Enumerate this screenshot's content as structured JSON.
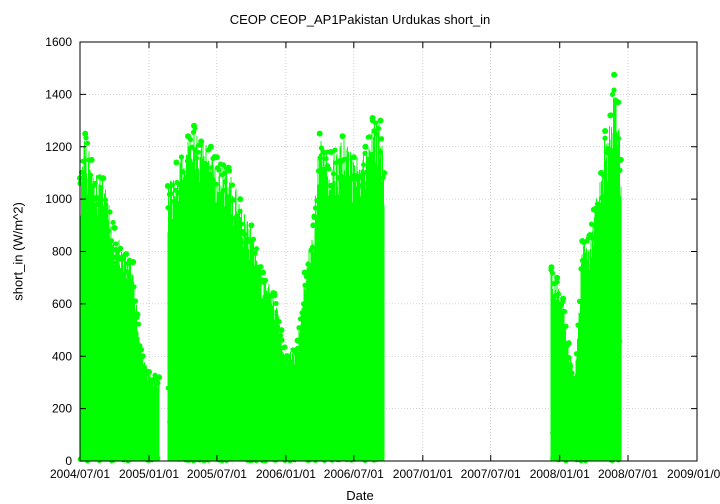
{
  "chart_data": {
    "type": "scatter",
    "title": "CEOP CEOP_AP1Pakistan Urdukas  short_in",
    "xlabel": "Date",
    "ylabel": "short_in (W/m^2)",
    "ylim": [
      0,
      1600
    ],
    "yticks": [
      0,
      200,
      400,
      600,
      800,
      1000,
      1200,
      1400,
      1600
    ],
    "xlim": [
      "2004-07-01",
      "2009-01-01"
    ],
    "xticks": [
      "2004/07/01",
      "2005/01/01",
      "2005/07/01",
      "2006/01/01",
      "2006/07/01",
      "2007/01/01",
      "2007/07/01",
      "2008/01/01",
      "2008/07/01",
      "2009/01/01"
    ],
    "grid": true,
    "series": [
      {
        "color": "#00ff00",
        "segments": [
          {
            "start": "2004-07-01",
            "end": "2005-01-28",
            "envelope": [
              [
                "2004-07-01",
                1080
              ],
              [
                "2004-07-15",
                1250
              ],
              [
                "2004-08-01",
                1150
              ],
              [
                "2004-09-01",
                1080
              ],
              [
                "2004-10-01",
                890
              ],
              [
                "2004-11-01",
                790
              ],
              [
                "2004-11-20",
                760
              ],
              [
                "2004-12-01",
                560
              ],
              [
                "2004-12-15",
                400
              ],
              [
                "2005-01-01",
                340
              ],
              [
                "2005-01-28",
                320
              ]
            ]
          },
          {
            "start": "2005-02-20",
            "end": "2006-01-05",
            "envelope": [
              [
                "2005-02-20",
                1050
              ],
              [
                "2005-03-15",
                1140
              ],
              [
                "2005-04-15",
                1240
              ],
              [
                "2005-05-01",
                1280
              ],
              [
                "2005-05-20",
                1220
              ],
              [
                "2005-06-15",
                1200
              ],
              [
                "2005-07-01",
                1160
              ],
              [
                "2005-08-01",
                1120
              ],
              [
                "2005-09-01",
                1000
              ],
              [
                "2005-10-01",
                900
              ],
              [
                "2005-11-01",
                720
              ],
              [
                "2005-12-01",
                640
              ],
              [
                "2005-12-20",
                500
              ],
              [
                "2006-01-05",
                400
              ]
            ]
          },
          {
            "start": "2006-01-05",
            "end": "2006-09-20",
            "envelope": [
              [
                "2006-01-05",
                400
              ],
              [
                "2006-02-01",
                460
              ],
              [
                "2006-02-20",
                720
              ],
              [
                "2006-03-15",
                900
              ],
              [
                "2006-04-01",
                1250
              ],
              [
                "2006-05-01",
                1180
              ],
              [
                "2006-06-01",
                1240
              ],
              [
                "2006-07-01",
                1160
              ],
              [
                "2006-08-01",
                1200
              ],
              [
                "2006-08-20",
                1310
              ],
              [
                "2006-09-10",
                1300
              ],
              [
                "2006-09-20",
                1100
              ]
            ]
          },
          {
            "start": "2007-12-10",
            "end": "2008-06-12",
            "envelope": [
              [
                "2007-12-10",
                740
              ],
              [
                "2007-12-25",
                700
              ],
              [
                "2008-01-10",
                620
              ],
              [
                "2008-01-25",
                450
              ],
              [
                "2008-02-10",
                310
              ],
              [
                "2008-03-01",
                840
              ],
              [
                "2008-03-20",
                860
              ],
              [
                "2008-04-01",
                960
              ],
              [
                "2008-04-20",
                1100
              ],
              [
                "2008-05-01",
                1260
              ],
              [
                "2008-05-15",
                1320
              ],
              [
                "2008-05-25",
                1475
              ],
              [
                "2008-06-05",
                1370
              ],
              [
                "2008-06-12",
                1150
              ]
            ]
          }
        ]
      }
    ]
  }
}
